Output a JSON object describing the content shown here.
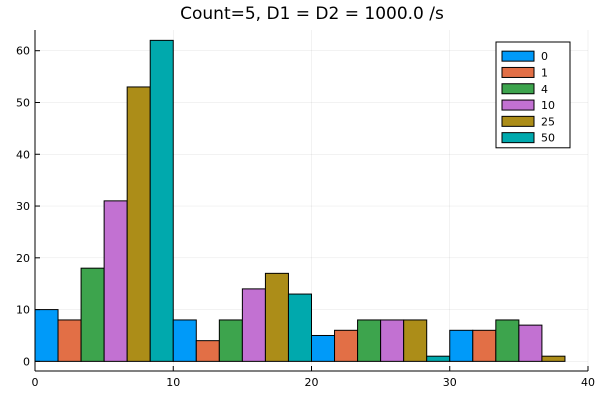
{
  "chart_data": {
    "type": "bar",
    "title": "Count=5, D1 = D2 = 1000.0 /s",
    "xlabel": "",
    "ylabel": "",
    "xlim": [
      0,
      40
    ],
    "ylim": [
      -1.86,
      64
    ],
    "xticks": [
      0,
      10,
      20,
      30,
      40
    ],
    "yticks": [
      0,
      10,
      20,
      30,
      40,
      50,
      60
    ],
    "grid": true,
    "legend_position": "top-right",
    "group_centers": [
      5,
      15,
      25,
      35
    ],
    "bar_width": 1.6667,
    "series": [
      {
        "name": "0",
        "color": "#009af9",
        "values": [
          10,
          8,
          5,
          6
        ]
      },
      {
        "name": "1",
        "color": "#e26f46",
        "values": [
          8,
          4,
          6,
          6
        ]
      },
      {
        "name": "4",
        "color": "#3da44d",
        "values": [
          18,
          8,
          8,
          8
        ]
      },
      {
        "name": "10",
        "color": "#c271d2",
        "values": [
          31,
          14,
          8,
          7
        ]
      },
      {
        "name": "25",
        "color": "#ac8d18",
        "values": [
          53,
          17,
          8,
          1
        ]
      },
      {
        "name": "50",
        "color": "#00a9ad",
        "values": [
          62,
          13,
          1,
          0
        ]
      }
    ]
  }
}
